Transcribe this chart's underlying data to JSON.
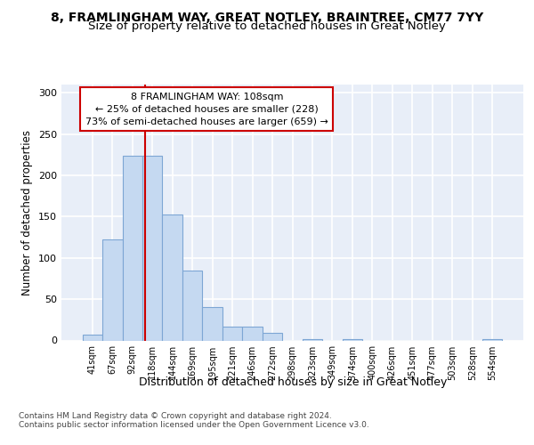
{
  "title1": "8, FRAMLINGHAM WAY, GREAT NOTLEY, BRAINTREE, CM77 7YY",
  "title2": "Size of property relative to detached houses in Great Notley",
  "xlabel": "Distribution of detached houses by size in Great Notley",
  "ylabel": "Number of detached properties",
  "categories": [
    "41sqm",
    "67sqm",
    "92sqm",
    "118sqm",
    "144sqm",
    "169sqm",
    "195sqm",
    "221sqm",
    "246sqm",
    "272sqm",
    "298sqm",
    "323sqm",
    "349sqm",
    "374sqm",
    "400sqm",
    "426sqm",
    "451sqm",
    "477sqm",
    "503sqm",
    "528sqm",
    "554sqm"
  ],
  "bar_values": [
    7,
    122,
    224,
    224,
    153,
    85,
    40,
    17,
    17,
    9,
    0,
    2,
    0,
    2,
    0,
    0,
    0,
    0,
    0,
    0,
    2
  ],
  "bar_color": "#c5d9f1",
  "bar_edge_color": "#7da6d4",
  "vline_color": "#cc0000",
  "annotation_text": "8 FRAMLINGHAM WAY: 108sqm\n← 25% of detached houses are smaller (228)\n73% of semi-detached houses are larger (659) →",
  "annotation_box_color": "#ffffff",
  "annotation_box_edge": "#cc0000",
  "ylim": [
    0,
    310
  ],
  "yticks": [
    0,
    50,
    100,
    150,
    200,
    250,
    300
  ],
  "footer_line1": "Contains HM Land Registry data © Crown copyright and database right 2024.",
  "footer_line2": "Contains public sector information licensed under the Open Government Licence v3.0.",
  "background_color": "#e8eef8",
  "grid_color": "#ffffff",
  "title1_fontsize": 10,
  "title2_fontsize": 9.5,
  "bar_width": 1.0,
  "vline_pos": 2.615
}
